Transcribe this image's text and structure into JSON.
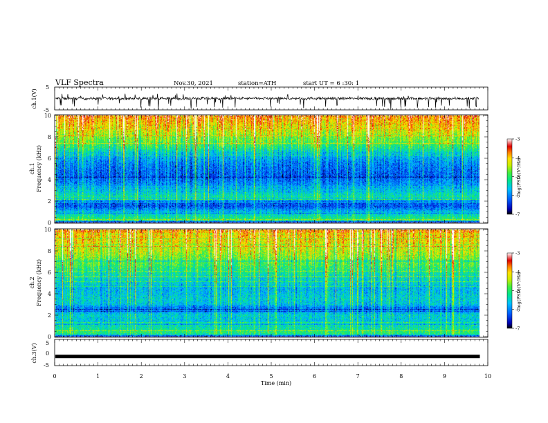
{
  "header": {
    "title": "VLF  Spectra",
    "date": "Nov.30, 2021",
    "station": "station=ATH",
    "start": "start  UT  =   6  :30: 1"
  },
  "colors": {
    "trace": "#000000",
    "colormap": [
      "#000000",
      "#0000b4",
      "#0060ff",
      "#00c0ff",
      "#00e68c",
      "#40ee40",
      "#c8ee00",
      "#ffe000",
      "#ff8000",
      "#e00000",
      "#ffffff"
    ]
  },
  "chart_data": [
    {
      "type": "line",
      "panel": "ch1-waveform",
      "ylabel": "ch.1(V)",
      "ylim": [
        -5,
        5
      ],
      "yticks": [
        "5",
        "-5"
      ],
      "xlim": [
        0,
        10
      ],
      "trace_level_approx": 0,
      "trace_range_approx": [
        -2,
        1.5
      ]
    },
    {
      "type": "heatmap",
      "panel": "ch1-spectrogram",
      "ylabel": "ch.1\nFrequency (kHz)",
      "ylim": [
        0,
        10
      ],
      "yticks": [
        "0",
        "2",
        "4",
        "6",
        "8",
        "10"
      ],
      "xlim": [
        0,
        9.8
      ],
      "colorbar": {
        "label": "log(PSD)(V²/Hz)",
        "range": [
          -7,
          -3
        ],
        "ticks": [
          "-3",
          "-4",
          "-5",
          "-6",
          "-7"
        ]
      },
      "profile_freq_khz": [
        0,
        0.2,
        0.6,
        1.0,
        1.5,
        2.0,
        2.3,
        2.6,
        3.0,
        3.5,
        4.0,
        4.5,
        5.0,
        5.5,
        6.0,
        6.5,
        7.0,
        7.5,
        8.0,
        8.5,
        9.0,
        9.5,
        10.0
      ],
      "profile_log_psd": [
        -6.6,
        -5.0,
        -5.3,
        -5.7,
        -6.3,
        -6.0,
        -5.2,
        -5.4,
        -5.6,
        -5.9,
        -6.1,
        -6.2,
        -6.1,
        -6.0,
        -5.8,
        -5.5,
        -5.1,
        -4.8,
        -4.6,
        -4.3,
        -4.1,
        -3.9,
        -3.7
      ]
    },
    {
      "type": "heatmap",
      "panel": "ch2-spectrogram",
      "ylabel": "ch.2\nFrequency (kHz)",
      "ylim": [
        0,
        10
      ],
      "yticks": [
        "0",
        "2",
        "4",
        "6",
        "8",
        "10"
      ],
      "xlim": [
        0,
        9.8
      ],
      "colorbar": {
        "label": "log(PSD)(V²/Hz)",
        "range": [
          -7,
          -3
        ],
        "ticks": [
          "-3",
          "-4",
          "-5",
          "-6",
          "-7"
        ]
      },
      "profile_freq_khz": [
        0,
        0.2,
        0.6,
        1.0,
        1.5,
        2.0,
        2.3,
        2.6,
        3.0,
        3.5,
        4.0,
        4.5,
        5.0,
        5.5,
        6.0,
        6.5,
        7.0,
        7.5,
        8.0,
        8.5,
        9.0,
        9.5,
        10.0
      ],
      "profile_log_psd": [
        -6.5,
        -5.1,
        -5.2,
        -5.4,
        -5.6,
        -5.5,
        -5.8,
        -6.2,
        -5.6,
        -5.5,
        -5.6,
        -5.7,
        -5.5,
        -5.4,
        -5.2,
        -5.0,
        -4.8,
        -4.6,
        -4.4,
        -4.3,
        -4.1,
        -4.0,
        -3.8
      ]
    },
    {
      "type": "line",
      "panel": "ch3-waveform",
      "ylabel": "ch.3(V)",
      "ylim": [
        -5,
        5
      ],
      "yticks": [
        "5",
        "0",
        "-5"
      ],
      "xlim": [
        0,
        10
      ],
      "trace_level_approx": -1.5
    }
  ],
  "xaxis": {
    "label": "Time  (min)",
    "range": [
      0,
      10
    ],
    "ticks": [
      "0",
      "1",
      "2",
      "3",
      "4",
      "5",
      "6",
      "7",
      "8",
      "9",
      "10"
    ]
  }
}
